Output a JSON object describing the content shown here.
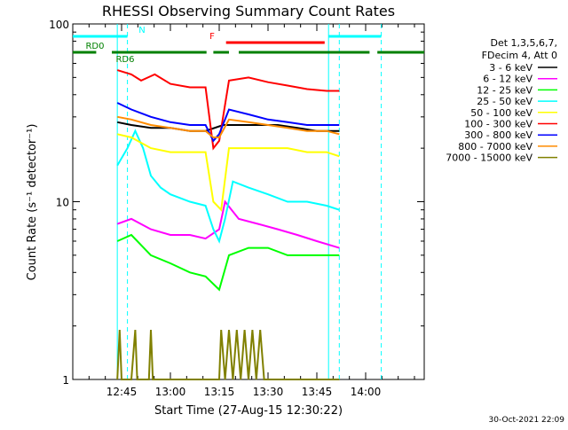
{
  "chart_data": {
    "type": "line",
    "title": "RHESSI Observing Summary Count Rates",
    "xlabel": "Start Time (27-Aug-15 12:30:22)",
    "ylabel": "Count Rate (s⁻¹ detector⁻¹)",
    "yscale": "log",
    "ylim": [
      1,
      100
    ],
    "xlim_minutes": [
      12.5,
      14.3
    ],
    "x_ticks": [
      {
        "t": 12.75,
        "label": "12:45"
      },
      {
        "t": 13.0,
        "label": "13:00"
      },
      {
        "t": 13.25,
        "label": "13:15"
      },
      {
        "t": 13.5,
        "label": "13:30"
      },
      {
        "t": 13.75,
        "label": "13:45"
      },
      {
        "t": 14.0,
        "label": "14:00"
      }
    ],
    "y_ticks": [
      {
        "v": 1,
        "label": "1"
      },
      {
        "v": 10,
        "label": "10"
      },
      {
        "v": 100,
        "label": "100"
      }
    ],
    "legend_title": [
      "Det 1,3,5,6,7,",
      "FDecim 4, Att 0"
    ],
    "legend_placement": "right",
    "series": [
      {
        "name": "3 - 6 keV",
        "color": "#000000",
        "points": [
          [
            12.728,
            28
          ],
          [
            12.8,
            27
          ],
          [
            12.9,
            26
          ],
          [
            13.0,
            26
          ],
          [
            13.1,
            25
          ],
          [
            13.18,
            25
          ],
          [
            13.27,
            27
          ],
          [
            13.35,
            27
          ],
          [
            13.45,
            27
          ],
          [
            13.55,
            27
          ],
          [
            13.65,
            26
          ],
          [
            13.75,
            25
          ],
          [
            13.865,
            25
          ]
        ]
      },
      {
        "name": "6 - 12 keV",
        "color": "#ff00ff",
        "points": [
          [
            12.728,
            7.5
          ],
          [
            12.8,
            8
          ],
          [
            12.9,
            7
          ],
          [
            13.0,
            6.5
          ],
          [
            13.1,
            6.5
          ],
          [
            13.18,
            6.2
          ],
          [
            13.25,
            7
          ],
          [
            13.28,
            10
          ],
          [
            13.35,
            8
          ],
          [
            13.45,
            7.5
          ],
          [
            13.55,
            7
          ],
          [
            13.65,
            6.5
          ],
          [
            13.75,
            6
          ],
          [
            13.865,
            5.5
          ]
        ]
      },
      {
        "name": "12 - 25 keV",
        "color": "#00ff00",
        "points": [
          [
            12.728,
            6
          ],
          [
            12.8,
            6.5
          ],
          [
            12.9,
            5
          ],
          [
            13.0,
            4.5
          ],
          [
            13.1,
            4
          ],
          [
            13.18,
            3.8
          ],
          [
            13.25,
            3.2
          ],
          [
            13.3,
            5
          ],
          [
            13.4,
            5.5
          ],
          [
            13.5,
            5.5
          ],
          [
            13.6,
            5
          ],
          [
            13.7,
            5
          ],
          [
            13.8,
            5
          ],
          [
            13.865,
            5
          ]
        ]
      },
      {
        "name": "25 - 50 keV",
        "color": "#00ffff",
        "points": [
          [
            12.728,
            16
          ],
          [
            12.78,
            20
          ],
          [
            12.82,
            25
          ],
          [
            12.86,
            20
          ],
          [
            12.9,
            14
          ],
          [
            12.95,
            12
          ],
          [
            13.0,
            11
          ],
          [
            13.1,
            10
          ],
          [
            13.18,
            9.5
          ],
          [
            13.22,
            7
          ],
          [
            13.25,
            6
          ],
          [
            13.28,
            8
          ],
          [
            13.32,
            13
          ],
          [
            13.4,
            12
          ],
          [
            13.5,
            11
          ],
          [
            13.6,
            10
          ],
          [
            13.7,
            10
          ],
          [
            13.8,
            9.5
          ],
          [
            13.865,
            9
          ]
        ]
      },
      {
        "name": "50 - 100 keV",
        "color": "#ffff00",
        "points": [
          [
            12.728,
            24
          ],
          [
            12.8,
            23
          ],
          [
            12.9,
            20
          ],
          [
            13.0,
            19
          ],
          [
            13.1,
            19
          ],
          [
            13.18,
            19
          ],
          [
            13.22,
            10
          ],
          [
            13.26,
            9
          ],
          [
            13.3,
            20
          ],
          [
            13.4,
            20
          ],
          [
            13.5,
            20
          ],
          [
            13.6,
            20
          ],
          [
            13.7,
            19
          ],
          [
            13.8,
            19
          ],
          [
            13.865,
            18
          ]
        ]
      },
      {
        "name": "100 - 300 keV",
        "color": "#ff0000",
        "points": [
          [
            12.728,
            55
          ],
          [
            12.8,
            52
          ],
          [
            12.85,
            48
          ],
          [
            12.92,
            52
          ],
          [
            13.0,
            46
          ],
          [
            13.1,
            44
          ],
          [
            13.18,
            44
          ],
          [
            13.22,
            20
          ],
          [
            13.25,
            22
          ],
          [
            13.3,
            48
          ],
          [
            13.4,
            50
          ],
          [
            13.5,
            47
          ],
          [
            13.6,
            45
          ],
          [
            13.7,
            43
          ],
          [
            13.8,
            42
          ],
          [
            13.865,
            42
          ]
        ]
      },
      {
        "name": "300 - 800 keV",
        "color": "#0000ff",
        "points": [
          [
            12.728,
            36
          ],
          [
            12.8,
            33
          ],
          [
            12.9,
            30
          ],
          [
            13.0,
            28
          ],
          [
            13.1,
            27
          ],
          [
            13.18,
            27
          ],
          [
            13.22,
            22
          ],
          [
            13.25,
            24
          ],
          [
            13.3,
            33
          ],
          [
            13.4,
            31
          ],
          [
            13.5,
            29
          ],
          [
            13.6,
            28
          ],
          [
            13.7,
            27
          ],
          [
            13.8,
            27
          ],
          [
            13.865,
            27
          ]
        ]
      },
      {
        "name": "800 - 7000 keV",
        "color": "#ff8c00",
        "points": [
          [
            12.728,
            30
          ],
          [
            12.8,
            29
          ],
          [
            12.9,
            27
          ],
          [
            13.0,
            26
          ],
          [
            13.1,
            25
          ],
          [
            13.18,
            25
          ],
          [
            13.22,
            23
          ],
          [
            13.25,
            23
          ],
          [
            13.3,
            29
          ],
          [
            13.4,
            28
          ],
          [
            13.5,
            27
          ],
          [
            13.6,
            26
          ],
          [
            13.7,
            25
          ],
          [
            13.8,
            25
          ],
          [
            13.865,
            24
          ]
        ]
      },
      {
        "name": "7000 - 15000 keV",
        "color": "#808000",
        "points": [
          [
            12.728,
            1.0
          ],
          [
            12.74,
            1.9
          ],
          [
            12.75,
            1.0
          ],
          [
            12.8,
            1.0
          ],
          [
            12.82,
            1.9
          ],
          [
            12.83,
            1.0
          ],
          [
            12.89,
            1.0
          ],
          [
            12.9,
            1.9
          ],
          [
            12.91,
            1.0
          ],
          [
            13.25,
            1.0
          ],
          [
            13.26,
            1.9
          ],
          [
            13.28,
            1.0
          ],
          [
            13.3,
            1.9
          ],
          [
            13.32,
            1.0
          ],
          [
            13.34,
            1.9
          ],
          [
            13.36,
            1.0
          ],
          [
            13.38,
            1.9
          ],
          [
            13.4,
            1.0
          ],
          [
            13.42,
            1.9
          ],
          [
            13.44,
            1.0
          ],
          [
            13.46,
            1.9
          ],
          [
            13.48,
            1.0
          ],
          [
            13.865,
            1.0
          ]
        ]
      }
    ],
    "state_bars": [
      {
        "label": "N",
        "color": "#00ffff",
        "level": 0,
        "segments": [
          [
            12.5,
            12.78
          ],
          [
            13.81,
            14.08
          ]
        ]
      },
      {
        "label": "F",
        "color": "#ff0000",
        "level": 1,
        "segments": [
          [
            13.285,
            13.79
          ]
        ]
      },
      {
        "label": "RD0",
        "color": "#008000",
        "level": 2,
        "segments": [
          [
            12.5,
            12.62
          ],
          [
            12.7,
            13.185
          ],
          [
            13.22,
            13.3
          ],
          [
            13.35,
            14.02
          ],
          [
            14.06,
            14.3
          ]
        ]
      }
    ],
    "state_labels_extra": [
      "RD6"
    ],
    "vertical_markers": [
      {
        "t": 12.728,
        "color": "#00ffff",
        "style": "solid"
      },
      {
        "t": 12.78,
        "color": "#00ffff",
        "style": "dashed"
      },
      {
        "t": 13.81,
        "color": "#00ffff",
        "style": "solid"
      },
      {
        "t": 13.865,
        "color": "#00ffff",
        "style": "dashed"
      },
      {
        "t": 14.08,
        "color": "#00ffff",
        "style": "dashed"
      }
    ],
    "timestamp": "30-Oct-2021 22:09"
  }
}
